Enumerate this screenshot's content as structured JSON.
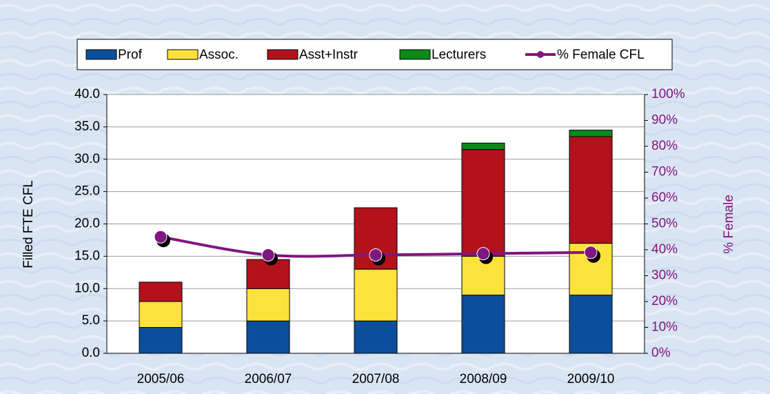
{
  "chart_data": {
    "type": "bar",
    "stacked": true,
    "categories": [
      "2005/06",
      "2006/07",
      "2007/08",
      "2008/09",
      "2009/10"
    ],
    "series": [
      {
        "name": "Prof",
        "color": "#0b4f9c",
        "values": [
          4,
          5,
          5,
          9,
          9
        ]
      },
      {
        "name": "Assoc.",
        "color": "#fde23c",
        "values": [
          4,
          5,
          8,
          6,
          8
        ]
      },
      {
        "name": "Asst+Instr",
        "color": "#b3121c",
        "values": [
          3,
          4.5,
          9.5,
          16.5,
          16.5
        ]
      },
      {
        "name": "Lecturers",
        "color": "#0b8a1a",
        "values": [
          0,
          0,
          0,
          1,
          1
        ]
      },
      {
        "name": "% Female CFL",
        "color": "#80167f",
        "type": "line",
        "axis": "y2",
        "values": [
          45,
          38,
          38,
          38.5,
          39
        ]
      }
    ],
    "ylabel": "Filled FTE CFL",
    "y2label": "% Female",
    "ylim": [
      0,
      40
    ],
    "yticks": [
      {
        "value": 0,
        "label": "0.0"
      },
      {
        "value": 5,
        "label": "5.0"
      },
      {
        "value": 10,
        "label": "10.0"
      },
      {
        "value": 15,
        "label": "15.0"
      },
      {
        "value": 20,
        "label": "20.0"
      },
      {
        "value": 25,
        "label": "25.0"
      },
      {
        "value": 30,
        "label": "30.0"
      },
      {
        "value": 35,
        "label": "35.0"
      },
      {
        "value": 40,
        "label": "40.0"
      }
    ],
    "y2lim": [
      0,
      100
    ],
    "y2ticks": [
      {
        "value": 0,
        "label": "0%"
      },
      {
        "value": 10,
        "label": "10%"
      },
      {
        "value": 20,
        "label": "20%"
      },
      {
        "value": 30,
        "label": "30%"
      },
      {
        "value": 40,
        "label": "40%"
      },
      {
        "value": 50,
        "label": "50%"
      },
      {
        "value": 60,
        "label": "60%"
      },
      {
        "value": 70,
        "label": "70%"
      },
      {
        "value": 80,
        "label": "80%"
      },
      {
        "value": 90,
        "label": "90%"
      },
      {
        "value": 100,
        "label": "100%"
      }
    ],
    "grid": true,
    "legend": "top"
  }
}
